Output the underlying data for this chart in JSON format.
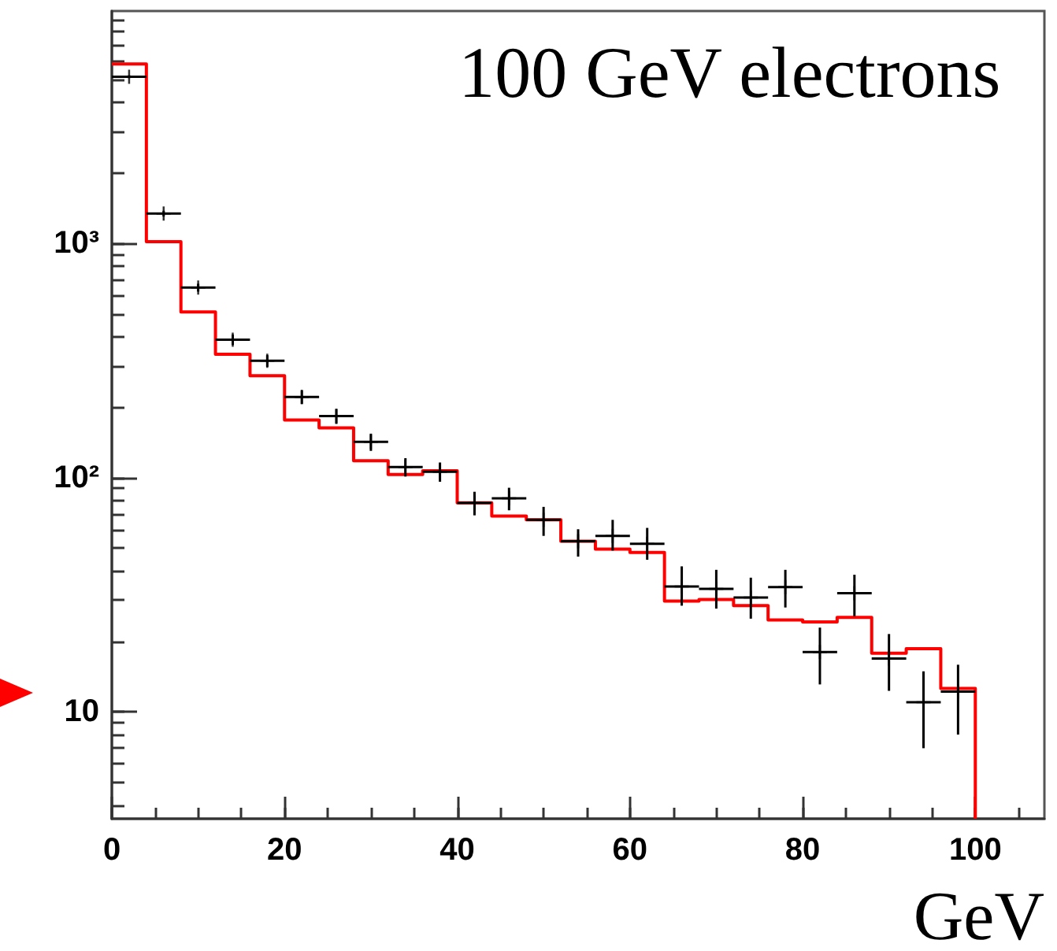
{
  "chart_data": {
    "type": "histogram",
    "title": "100 GeV electrons",
    "xlabel": "GeV",
    "xlim": [
      0,
      108
    ],
    "xticks": [
      0,
      20,
      40,
      60,
      80,
      100
    ],
    "ylim": [
      3.5,
      9800
    ],
    "yticks": [
      10,
      {
        "value": 100,
        "label": "10²"
      },
      {
        "value": 1000,
        "label": "10³"
      }
    ],
    "log": true,
    "grid": false,
    "series": [
      {
        "color": "#ff0000",
        "bins": [
          0,
          4,
          8,
          12,
          16,
          20,
          24,
          28,
          32,
          36,
          40,
          44,
          48,
          52,
          56,
          60,
          64,
          68,
          72,
          76,
          80,
          84,
          88,
          92,
          96,
          100
        ],
        "values": [
          5820,
          1015,
          509,
          336,
          272,
          176,
          163,
          118,
          103,
          107,
          78,
          68.5,
          66,
          53.5,
          49.5,
          47.9,
          29.7,
          30.2,
          28.4,
          24.7,
          24.2,
          25.3,
          17.8,
          18.6,
          12.6
        ]
      },
      {
        "type": "scatter",
        "color": "#000000",
        "marker": "cross",
        "x": [
          2,
          6,
          10,
          14,
          18,
          22,
          26,
          30,
          34,
          38,
          42,
          46,
          50,
          54,
          58,
          62,
          66,
          70,
          74,
          78,
          82,
          86,
          90,
          94,
          98
        ],
        "values": [
          5140,
          1339,
          647,
          388,
          315,
          221,
          183,
          142,
          111,
          106,
          78,
          81.5,
          66,
          53.5,
          56.4,
          52.2,
          34.3,
          33.5,
          30.8,
          34.1,
          18.0,
          32.1,
          16.9,
          11.0,
          12.2
        ],
        "errors": [
          72,
          37,
          25,
          20,
          18,
          15,
          13.5,
          12,
          10,
          10,
          9,
          9,
          [
            56.4,
            75
          ],
          [
            46,
            60.2
          ],
          [
            48.8,
            66
          ],
          [
            44.6,
            61
          ],
          [
            28.4,
            41.8
          ],
          [
            27.6,
            40.4
          ],
          [
            25,
            37.4
          ],
          [
            27.9,
            40.4
          ],
          [
            13.1,
            22.9
          ],
          [
            25.6,
            38.5
          ],
          [
            12.3,
            21.5
          ],
          [
            7,
            14.9
          ],
          [
            8,
            15.9
          ]
        ],
        "xerrors": [
          2,
          2,
          2,
          2,
          2,
          2,
          2,
          2,
          2,
          2,
          2,
          2,
          2,
          2,
          2,
          2,
          2,
          2,
          2,
          2,
          2,
          2,
          2,
          2,
          2
        ]
      }
    ]
  }
}
